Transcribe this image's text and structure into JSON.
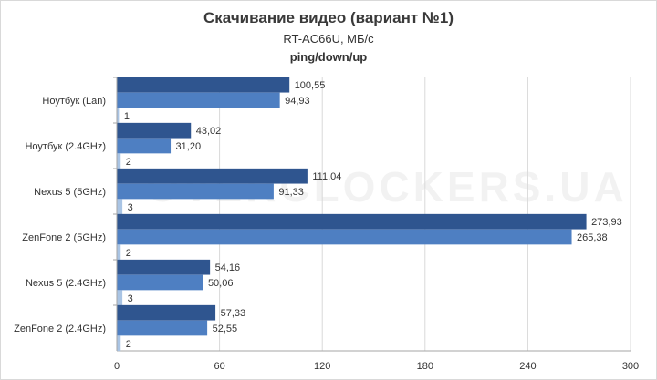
{
  "chart_data": {
    "type": "bar",
    "orientation": "horizontal",
    "title": "Скачивание видео (вариант №1)",
    "subtitle": "RT-AC66U, МБ/с",
    "subtitle2": "ping/down/up",
    "categories": [
      "Ноутбук (Lan)",
      "Ноутбук (2.4GHz)",
      "Nexus 5 (5GHz)",
      "ZenFone 2 (5GHz)",
      "Nexus 5 (2.4GHz)",
      "ZenFone 2 (2.4GHz)"
    ],
    "series": [
      {
        "values": [
          100.55,
          43.02,
          111.04,
          273.93,
          54.16,
          57.33
        ],
        "labels": [
          "100,55",
          "43,02",
          "111,04",
          "273,93",
          "54,16",
          "57,33"
        ],
        "color": "#2f558f"
      },
      {
        "values": [
          94.93,
          31.2,
          91.33,
          265.38,
          50.06,
          52.55
        ],
        "labels": [
          "94,93",
          "31,20",
          "91,33",
          "265,38",
          "50,06",
          "52,55"
        ],
        "color": "#4e7fc2"
      },
      {
        "values": [
          1,
          2,
          3,
          2,
          3,
          2
        ],
        "labels": [
          "1",
          "2",
          "3",
          "2",
          "3",
          "2"
        ],
        "color": "#a9c4e4"
      }
    ],
    "xticks": [
      0,
      60,
      120,
      180,
      240,
      300
    ],
    "xlim": [
      0,
      300
    ],
    "grid": true
  },
  "watermark": "OVERCLOCKERS.UA"
}
